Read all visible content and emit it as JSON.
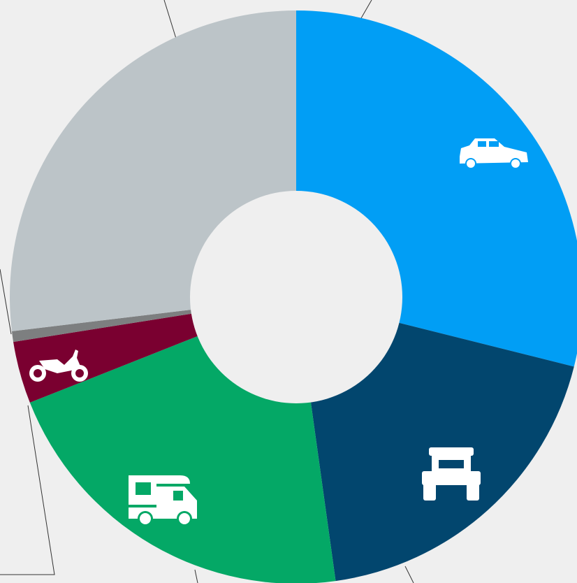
{
  "chart_data": {
    "type": "donut",
    "categories": [
      null,
      null,
      null,
      null,
      null,
      null
    ],
    "values": [
      28.9,
      18.9,
      21.2,
      3.5,
      0.6,
      26.9
    ],
    "colors": [
      "#019ef5",
      "#02466e",
      "#04a866",
      "#7a0030",
      "#7d7f80",
      "#bcc4c8"
    ]
  }
}
